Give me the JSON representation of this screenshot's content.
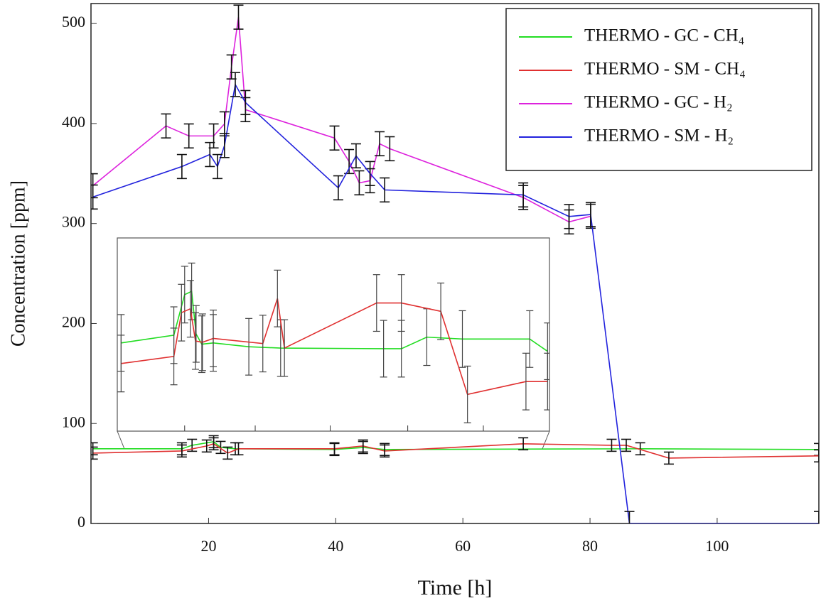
{
  "chart_data": [
    {
      "type": "line",
      "xlabel": "Time [h]",
      "ylabel": "Concentration [ppm]",
      "xlim": [
        1.5,
        116
      ],
      "ylim": [
        0,
        520
      ],
      "xticks": [
        20,
        40,
        60,
        80,
        100
      ],
      "yticks": [
        0,
        100,
        200,
        300,
        400,
        500
      ],
      "legend": "upper right",
      "series": [
        {
          "name": "THERMO - GC - CH₄",
          "color": "#22dd22",
          "error": 6,
          "x": [
            1.8,
            15.8,
            17.4,
            20.8,
            21.9,
            24.2,
            39.8,
            44.3,
            47.7,
            87.9,
            116
          ],
          "values": [
            74.7,
            74.7,
            78.2,
            81.8,
            76.1,
            74.7,
            74,
            76,
            74,
            74.7,
            74
          ]
        },
        {
          "name": "THERMO - SM - CH₄",
          "color": "#e03030",
          "error": 6,
          "x": [
            1.8,
            15.8,
            19.7,
            20.8,
            23,
            24.7,
            39.8,
            44.3,
            47.7,
            69.5,
            83.4,
            85.7,
            92.4,
            116
          ],
          "values": [
            70.4,
            72.5,
            77.5,
            79.7,
            70.4,
            74.7,
            74.7,
            77.5,
            72.5,
            79.7,
            78.2,
            78.2,
            65.4,
            67.6
          ]
        },
        {
          "name": "THERMO - GC - H₂",
          "color": "#dd22dd",
          "error": 12,
          "x": [
            1.8,
            13.3,
            16.9,
            20.8,
            22.5,
            23.6,
            24.7,
            25.8,
            39.8,
            42.1,
            43.7,
            45.4,
            46.9,
            48.5,
            69.5,
            76.7,
            80.1
          ],
          "values": [
            337.8,
            397.6,
            387.6,
            387.6,
            399.7,
            456.6,
            506.4,
            413.9,
            385.5,
            362,
            340.7,
            342.8,
            379.8,
            374.8,
            326,
            301.6,
            307.3
          ]
        },
        {
          "name": "THERMO - SM - H₂",
          "color": "#2222dd",
          "error": 12,
          "x": [
            1.8,
            15.8,
            20.2,
            21.4,
            22.5,
            24.2,
            25.8,
            40.4,
            43.2,
            45.4,
            47.7,
            69.5,
            76.7,
            80.1,
            86.2,
            116
          ],
          "values": [
            326.5,
            357,
            369,
            357,
            378,
            439,
            421,
            335.7,
            367.7,
            350,
            333.6,
            328.6,
            307,
            309,
            0,
            0
          ]
        }
      ]
    },
    {
      "type": "line",
      "xlim": [
        6,
        74
      ],
      "ylim": [
        60,
        90
      ],
      "xticks": [
        16.6,
        27.7,
        39.5,
        51.7,
        63.6
      ],
      "series": [
        {
          "color": "#22dd22",
          "error": 4.4,
          "x": [
            6.6,
            14.9,
            16.6,
            17.7,
            18.4,
            19.3,
            21.1,
            26.7,
            31.7,
            47.9,
            50.7,
            54.7,
            60.3,
            70.9,
            73.7
          ],
          "values": [
            73.7,
            74.9,
            81.2,
            81.7,
            75.1,
            73.5,
            73.7,
            73.1,
            72.9,
            72.8,
            72.8,
            74.6,
            74.3,
            74.3,
            72.4
          ]
        },
        {
          "color": "#e03030",
          "error": 4.4,
          "x": [
            6.6,
            14.9,
            16.1,
            17.5,
            18.3,
            19.4,
            21.1,
            28.9,
            31.2,
            32.3,
            46.8,
            50.7,
            56.9,
            61.1,
            70.3,
            73.7
          ],
          "values": [
            70.5,
            71.6,
            78.4,
            79,
            74,
            73.8,
            74.4,
            73.6,
            80.6,
            72.9,
            79.9,
            79.9,
            78.6,
            65.7,
            67.7,
            67.7
          ]
        }
      ]
    }
  ]
}
